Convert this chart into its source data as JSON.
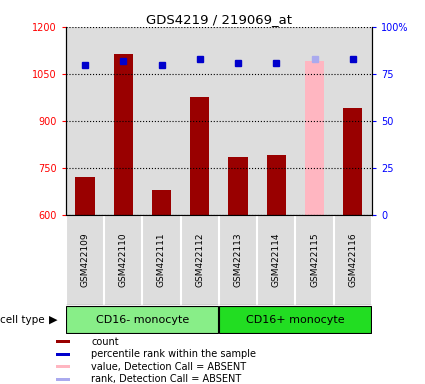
{
  "title": "GDS4219 / 219069_at",
  "samples": [
    "GSM422109",
    "GSM422110",
    "GSM422111",
    "GSM422112",
    "GSM422113",
    "GSM422114",
    "GSM422115",
    "GSM422116"
  ],
  "count_values": [
    720,
    1115,
    680,
    975,
    785,
    790,
    1090,
    940
  ],
  "percentile_values": [
    80,
    82,
    80,
    83,
    81,
    81,
    83,
    83
  ],
  "is_absent": [
    false,
    false,
    false,
    false,
    false,
    false,
    true,
    false
  ],
  "bar_color_normal": "#990000",
  "bar_color_absent": "#FFB6C1",
  "dot_color_normal": "#0000CC",
  "dot_color_absent": "#AAAAEE",
  "cell_type_groups": [
    {
      "label": "CD16- monocyte",
      "start": 0,
      "end": 4,
      "color": "#88EE88"
    },
    {
      "label": "CD16+ monocyte",
      "start": 4,
      "end": 8,
      "color": "#22DD22"
    }
  ],
  "ylim_left": [
    600,
    1200
  ],
  "ylim_right": [
    0,
    100
  ],
  "yticks_left": [
    600,
    750,
    900,
    1050,
    1200
  ],
  "yticks_right": [
    0,
    25,
    50,
    75,
    100
  ],
  "right_tick_labels": [
    "0",
    "25",
    "50",
    "75",
    "100%"
  ],
  "col_bg_color": "#DDDDDD",
  "legend_items": [
    {
      "label": "count",
      "color": "#990000"
    },
    {
      "label": "percentile rank within the sample",
      "color": "#0000CC"
    },
    {
      "label": "value, Detection Call = ABSENT",
      "color": "#FFB6C1"
    },
    {
      "label": "rank, Detection Call = ABSENT",
      "color": "#AAAAEE"
    }
  ]
}
